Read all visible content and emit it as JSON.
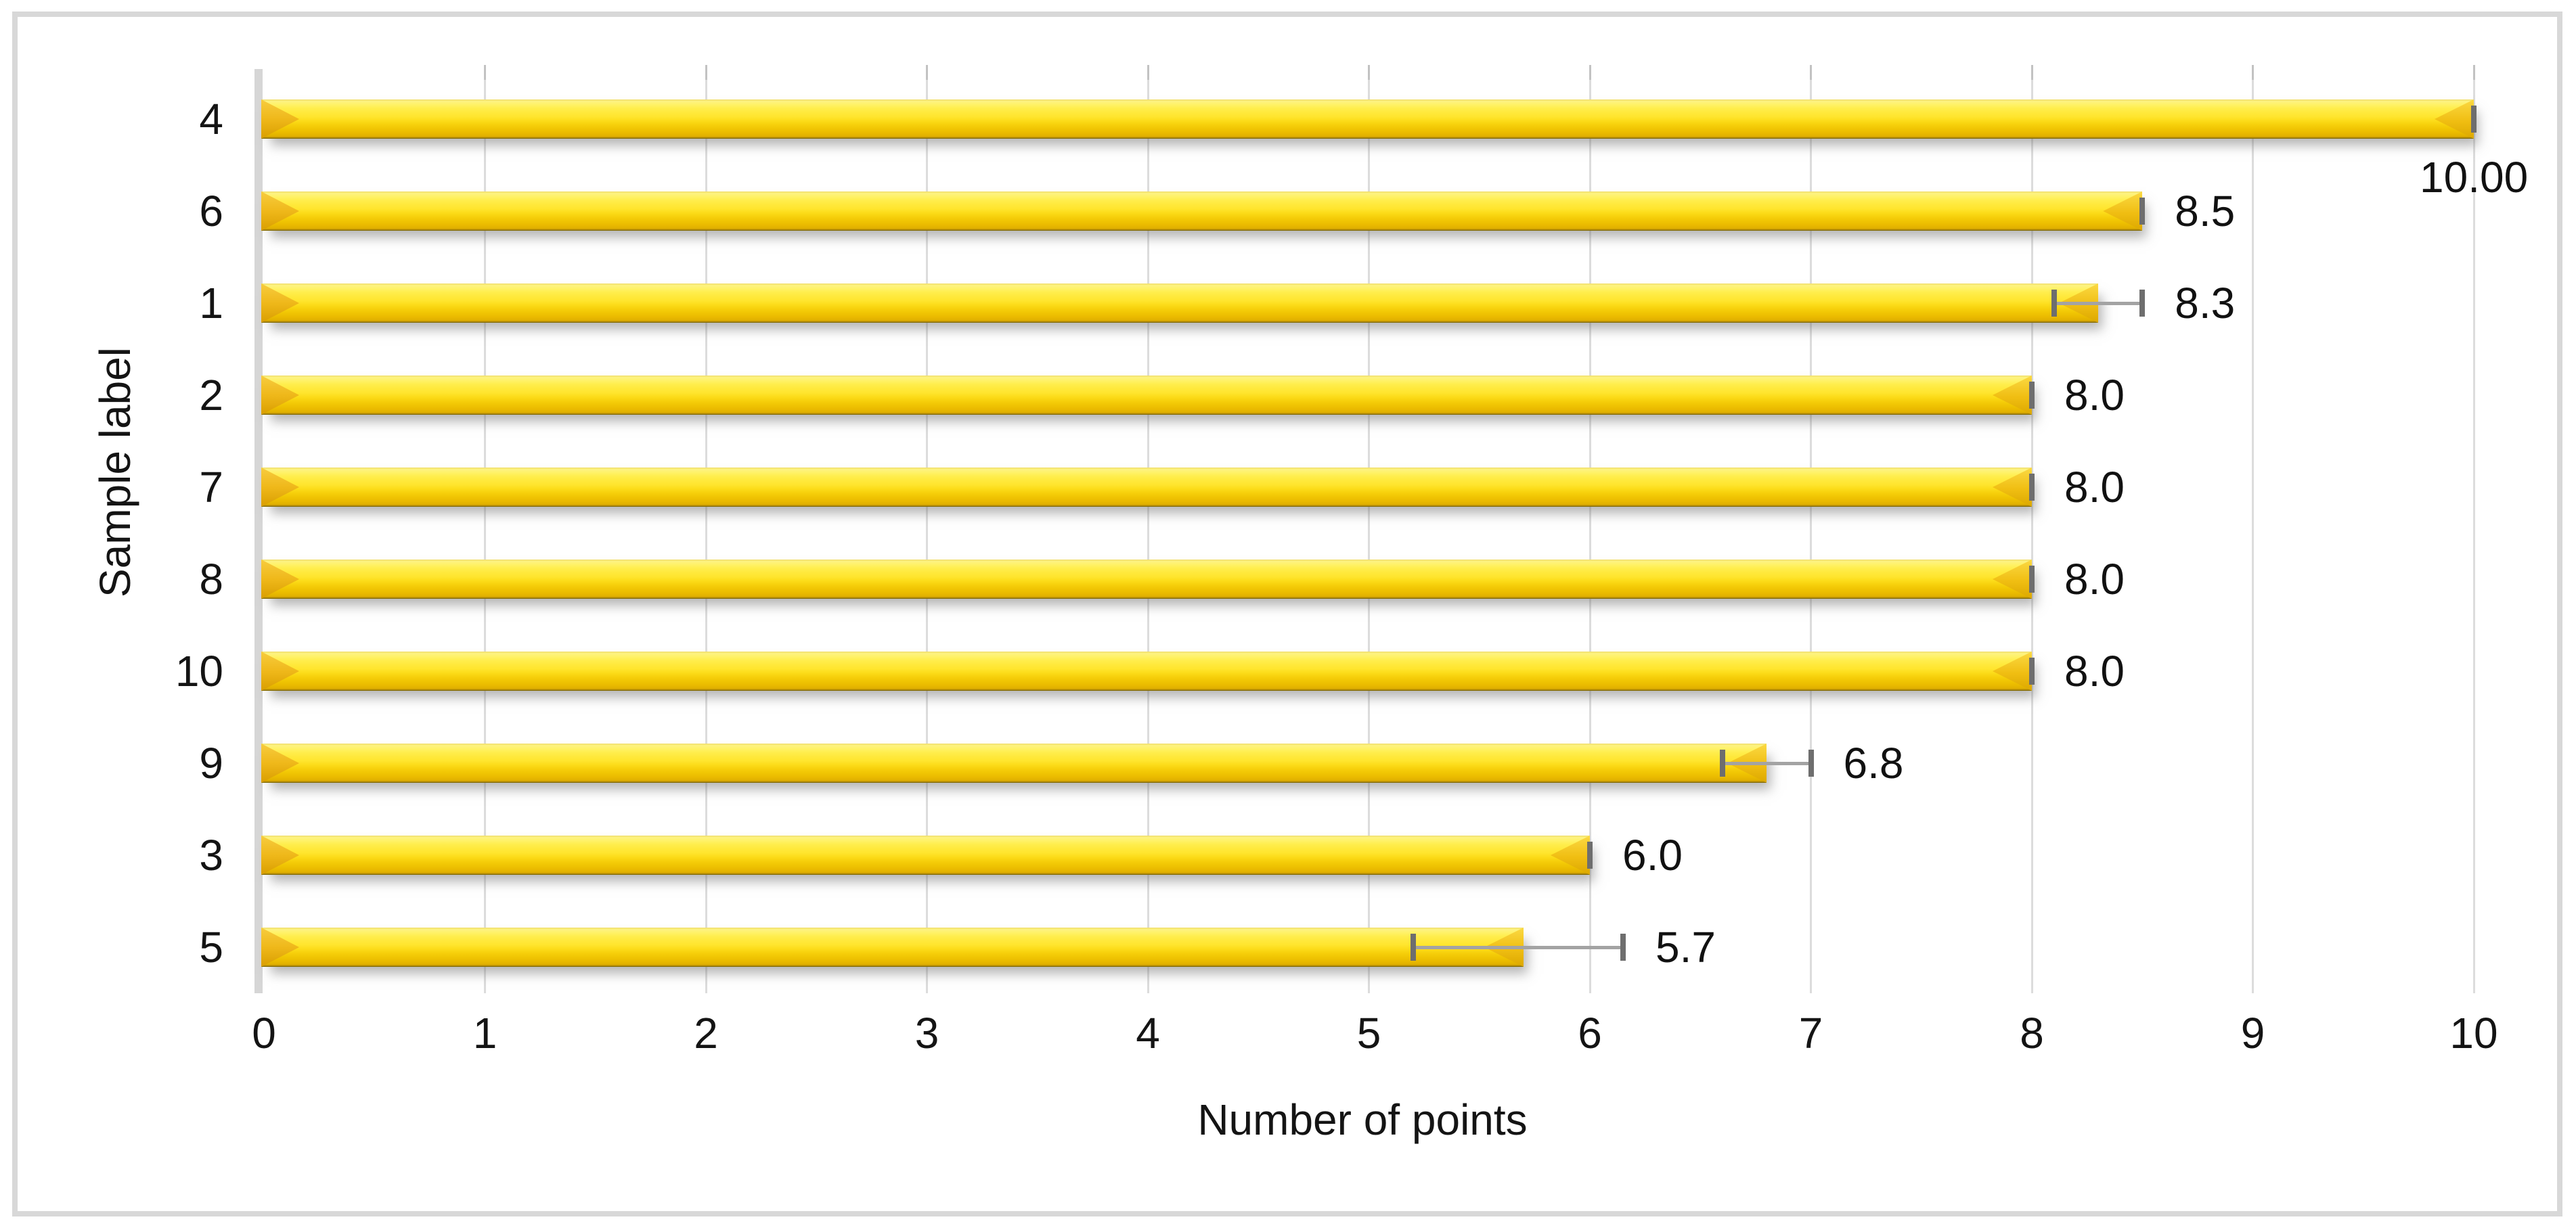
{
  "chart_data": {
    "type": "bar",
    "orientation": "horizontal",
    "title": "",
    "xlabel": "Number of points",
    "ylabel": "Sample label",
    "categories": [
      "4",
      "6",
      "1",
      "2",
      "7",
      "8",
      "10",
      "9",
      "3",
      "5"
    ],
    "values": [
      10.0,
      8.5,
      8.3,
      8.0,
      8.0,
      8.0,
      8.0,
      6.8,
      6.0,
      5.7
    ],
    "data_labels": [
      "10.00",
      "8.5",
      "8.3",
      "8.0",
      "8.0",
      "8.0",
      "8.0",
      "6.8",
      "6.0",
      "5.7"
    ],
    "data_label_positions": [
      "below-end",
      "right",
      "right",
      "right",
      "right",
      "right",
      "right",
      "right",
      "right",
      "right"
    ],
    "error_bars": [
      {
        "min": 10.0,
        "max": 10.0
      },
      {
        "min": 8.5,
        "max": 8.5
      },
      {
        "min": 8.1,
        "max": 8.5
      },
      {
        "min": 8.0,
        "max": 8.0
      },
      {
        "min": 8.0,
        "max": 8.0
      },
      {
        "min": 8.0,
        "max": 8.0
      },
      {
        "min": 8.0,
        "max": 8.0
      },
      {
        "min": 6.6,
        "max": 7.0
      },
      {
        "min": 6.0,
        "max": 6.0
      },
      {
        "min": 5.2,
        "max": 6.15
      }
    ],
    "xlim": [
      0,
      10
    ],
    "xticks": [
      "0",
      "1",
      "2",
      "3",
      "4",
      "5",
      "6",
      "7",
      "8",
      "9",
      "10"
    ],
    "grid": true,
    "legend": "none",
    "bar_color": "#FFE52E",
    "bar_edge_color": "#6E5D05",
    "error_color": "#6E6E6E",
    "gridline_color": "#DCDCDC",
    "axis_line_color": "#D6D6D6",
    "frame_color": "#D8D8D8"
  }
}
